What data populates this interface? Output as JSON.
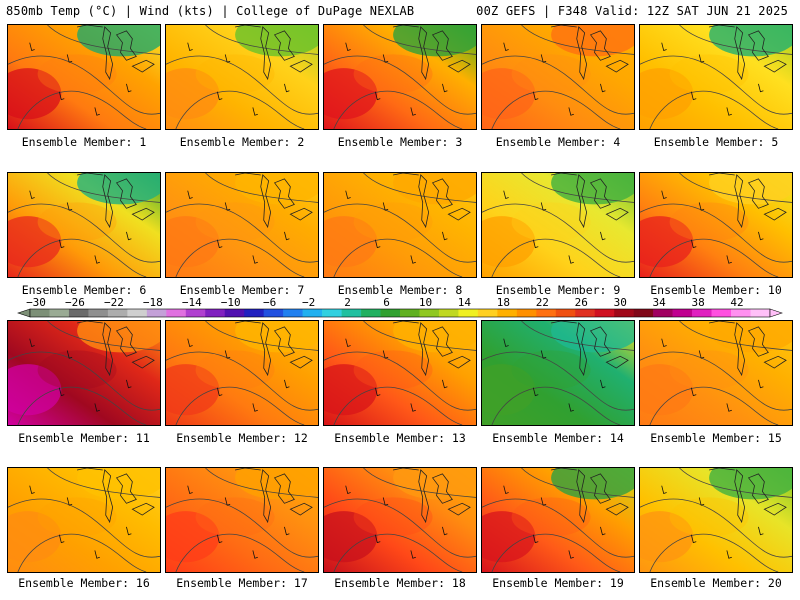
{
  "header": {
    "left_title": "850mb Temp (°C) | Wind (kts) | College of DuPage NEXLAB",
    "right_title": "00Z GEFS | F348 Valid: 12Z SAT JUN 21 2025"
  },
  "colorbar": {
    "tick_labels": [
      "−30",
      "−26",
      "−22",
      "−18",
      "−14",
      "−10",
      "−6",
      "−2",
      "2",
      "6",
      "10",
      "14",
      "18",
      "22",
      "26",
      "30",
      "34",
      "38",
      "42"
    ],
    "colors": [
      "#7d9077",
      "#9aab94",
      "#6b6b6b",
      "#8f8f8f",
      "#adadad",
      "#cfcfcf",
      "#c4a0d8",
      "#e070e0",
      "#b040d0",
      "#8020c0",
      "#5010b0",
      "#2020c0",
      "#2050e0",
      "#2080f0",
      "#20b0f0",
      "#30d0e0",
      "#20c0a0",
      "#20b060",
      "#30a030",
      "#60b020",
      "#90c820",
      "#c0d820",
      "#f0f020",
      "#ffd020",
      "#ffb000",
      "#ff9000",
      "#ff7010",
      "#f05010",
      "#e03020",
      "#d01020",
      "#a00818",
      "#800818",
      "#a00060",
      "#c00090",
      "#e020c0",
      "#ff50e0",
      "#ff90f0",
      "#ffc0f8"
    ]
  },
  "panels": [
    {
      "label": "Ensemble Member: 1",
      "colors": {
        "a": "#d80f1a",
        "b": "#ff7a10",
        "c": "#ffa300",
        "d": "#f5e830"
      },
      "top": "#1fa86a"
    },
    {
      "label": "Ensemble Member: 2",
      "colors": {
        "a": "#ff8c10",
        "b": "#ffb400",
        "c": "#ffd21a",
        "d": "#a8d22a"
      },
      "top": "#68c22a"
    },
    {
      "label": "Ensemble Member: 3",
      "colors": {
        "a": "#e0141c",
        "b": "#ff6a14",
        "c": "#ffb000",
        "d": "#40b020"
      },
      "top": "#2fa03a"
    },
    {
      "label": "Ensemble Member: 4",
      "colors": {
        "a": "#ff6418",
        "b": "#ff8c10",
        "c": "#ffa800",
        "d": "#ffb000"
      },
      "top": "#ff7010"
    },
    {
      "label": "Ensemble Member: 5",
      "colors": {
        "a": "#ffa000",
        "b": "#ffc000",
        "c": "#ffe020",
        "d": "#a0d020"
      },
      "top": "#20b070"
    },
    {
      "label": "Ensemble Member: 6",
      "colors": {
        "a": "#e8281c",
        "b": "#ff9a08",
        "c": "#f0e020",
        "d": "#40a830"
      },
      "top": "#20b080"
    },
    {
      "label": "Ensemble Member: 7",
      "colors": {
        "a": "#ff7814",
        "b": "#ff9410",
        "c": "#ffac00",
        "d": "#ffcc10"
      },
      "top": "#ffb400"
    },
    {
      "label": "Ensemble Member: 8",
      "colors": {
        "a": "#ff7a14",
        "b": "#ff9a08",
        "c": "#ffb400",
        "d": "#ffc810"
      },
      "top": "#ffa800"
    },
    {
      "label": "Ensemble Member: 9",
      "colors": {
        "a": "#ffa000",
        "b": "#ffd21a",
        "c": "#e8e830",
        "d": "#70c030"
      },
      "top": "#40b040"
    },
    {
      "label": "Ensemble Member: 10",
      "colors": {
        "a": "#e8201c",
        "b": "#ff8010",
        "c": "#ffc000",
        "d": "#f0e828"
      },
      "top": "#ffd020"
    },
    {
      "label": "Ensemble Member: 11",
      "colors": {
        "a": "#d000a0",
        "b": "#a00820",
        "c": "#e02818",
        "d": "#ff9010"
      },
      "top": "#ff8c10"
    },
    {
      "label": "Ensemble Member: 12",
      "colors": {
        "a": "#f03a18",
        "b": "#ff7a10",
        "c": "#ffa000",
        "d": "#ffc010"
      },
      "top": "#ffb400"
    },
    {
      "label": "Ensemble Member: 13",
      "colors": {
        "a": "#d81418",
        "b": "#ff5818",
        "c": "#ffa000",
        "d": "#ffc010"
      },
      "top": "#ffb000"
    },
    {
      "label": "Ensemble Member: 14",
      "colors": {
        "a": "#40a028",
        "b": "#30a030",
        "c": "#20b070",
        "d": "#f0e020"
      },
      "top": "#1fb890"
    },
    {
      "label": "Ensemble Member: 15",
      "colors": {
        "a": "#ff7a14",
        "b": "#ff9010",
        "c": "#ffb000",
        "d": "#ffc810"
      },
      "top": "#ffa800"
    },
    {
      "label": "Ensemble Member: 16",
      "colors": {
        "a": "#ff8c10",
        "b": "#ffa000",
        "c": "#ffbc00",
        "d": "#ffd020"
      },
      "top": "#ffc000"
    },
    {
      "label": "Ensemble Member: 17",
      "colors": {
        "a": "#ff3c18",
        "b": "#ff6a14",
        "c": "#ff9010",
        "d": "#ffb000"
      },
      "top": "#ffa000"
    },
    {
      "label": "Ensemble Member: 18",
      "colors": {
        "a": "#c8101c",
        "b": "#ff4818",
        "c": "#ff8c10",
        "d": "#ffb000"
      },
      "top": "#ff9810"
    },
    {
      "label": "Ensemble Member: 19",
      "colors": {
        "a": "#d8141c",
        "b": "#ff5a18",
        "c": "#ffa000",
        "d": "#c8d820"
      },
      "top": "#30a040"
    },
    {
      "label": "Ensemble Member: 20",
      "colors": {
        "a": "#ff9410",
        "b": "#ffc000",
        "c": "#e8e428",
        "d": "#80c828"
      },
      "top": "#40b040"
    }
  ]
}
